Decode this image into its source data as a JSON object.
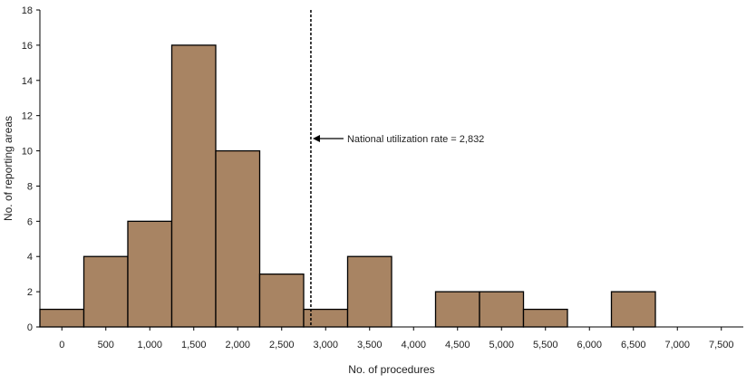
{
  "chart_data": {
    "type": "bar",
    "xlabel": "No. of procedures",
    "ylabel": "No. of reporting areas",
    "bin_width": 500,
    "x": [
      0,
      500,
      1000,
      1500,
      2000,
      2500,
      3000,
      3500,
      4000,
      4500,
      5000,
      5500,
      6000,
      6500,
      7000,
      7500
    ],
    "x_tick_labels": [
      "0",
      "500",
      "1,000",
      "1,500",
      "2,000",
      "2,500",
      "3,000",
      "3,500",
      "4,000",
      "4,500",
      "5,000",
      "5,500",
      "6,000",
      "6,500",
      "7,000",
      "7,500"
    ],
    "values": [
      1,
      4,
      6,
      16,
      10,
      3,
      1,
      4,
      0,
      2,
      2,
      1,
      0,
      2,
      0,
      0
    ],
    "xlim": [
      -250,
      7750
    ],
    "ylim": [
      0,
      18
    ],
    "y_ticks": [
      0,
      2,
      4,
      6,
      8,
      10,
      12,
      14,
      16,
      18
    ],
    "grid": false,
    "bar_color": "#a88463",
    "reference_line": {
      "x": 2832,
      "style": "dashed",
      "label": "National utilization rate = 2,832"
    }
  }
}
